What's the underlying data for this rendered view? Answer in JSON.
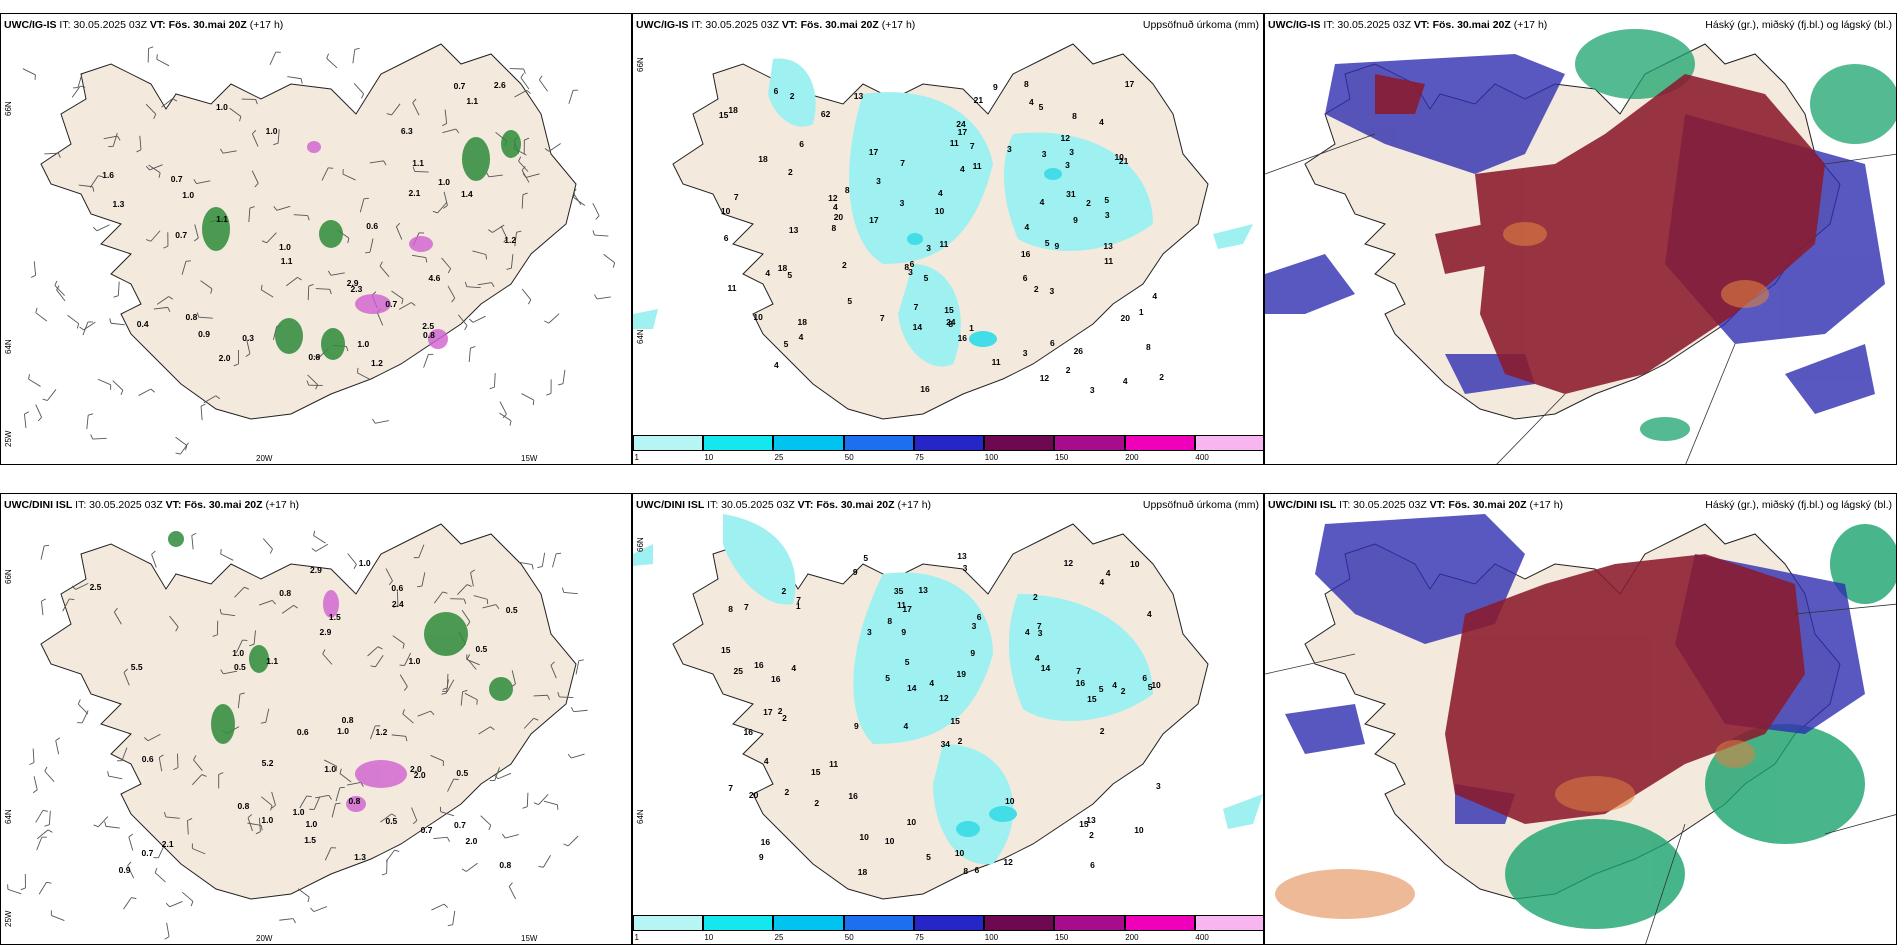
{
  "rows": [
    {
      "id": "top",
      "wind": {
        "model": "UWC/IG-IS",
        "it_label": "IT: 30.05.2025 03Z",
        "vt_label": "VT: Fös. 30.mai 20Z",
        "lead": "(+17 h)",
        "lon_labels": [
          "20W",
          "15W"
        ],
        "lat_labels": [
          "66N",
          "64N",
          "25W"
        ],
        "values": [
          "1.2",
          "1.0",
          "0.8",
          "0.7",
          "1.0",
          "1.0",
          "1.2",
          "1.1",
          "1.1",
          "0.9",
          "0.4",
          "1.6",
          "1.0",
          "2.9",
          "2.1",
          "0.7",
          "1.3",
          "1.1",
          "4.6",
          "1.4",
          "2.5",
          "2.3",
          "2.0",
          "0.8",
          "0.6",
          "1.1",
          "0.7",
          "1.0",
          "0.8",
          "1.0",
          "0.7",
          "2.6",
          "6.3",
          "0.3"
        ]
      },
      "precip": {
        "model": "UWC/IG-IS",
        "it_label": "IT: 30.05.2025 03Z",
        "vt_label": "VT: Fös. 30.mai 20Z",
        "lead": "(+17 h)",
        "title": "Uppsöfnuð úrkoma (mm)",
        "lat_labels": [
          "66N",
          "64N"
        ],
        "values": [
          "6",
          "4",
          "2",
          "1",
          "3",
          "3",
          "5",
          "4",
          "8",
          "2",
          "5",
          "16",
          "11",
          "3",
          "5",
          "4",
          "4",
          "4",
          "8",
          "7",
          "5",
          "6",
          "4",
          "4",
          "3",
          "5",
          "2",
          "3",
          "2",
          "5",
          "21",
          "9",
          "7",
          "6",
          "17",
          "4",
          "11",
          "11",
          "9",
          "12",
          "6",
          "2",
          "24",
          "16",
          "10",
          "17",
          "17",
          "8",
          "3",
          "2",
          "7",
          "12",
          "10",
          "26",
          "18",
          "20",
          "5",
          "6",
          "9",
          "24",
          "13",
          "14",
          "11",
          "11",
          "8",
          "10",
          "4",
          "7",
          "15",
          "8",
          "13",
          "13",
          "18",
          "8",
          "3",
          "4",
          "3",
          "3",
          "11",
          "18",
          "2",
          "7",
          "12",
          "16",
          "21",
          "62",
          "4",
          "8",
          "31",
          "18",
          "20",
          "3",
          "3",
          "10",
          "17",
          "15",
          "4",
          "3",
          "1",
          "6"
        ]
      },
      "cloud": {
        "model": "UWC/IG-IS",
        "it_label": "IT: 30.05.2025 03Z",
        "vt_label": "VT: Fös. 30.mai 20Z",
        "lead": "(+17 h)",
        "title": "Háský (gr.), miðský (fj.bl.) og lágský (bl.)"
      }
    },
    {
      "id": "bottom",
      "wind": {
        "model": "UWC/DINI ISL",
        "it_label": "IT: 30.05.2025 03Z",
        "vt_label": "VT: Fös. 30.mai 20Z",
        "lead": "(+17 h)",
        "lon_labels": [
          "20W",
          "15W"
        ],
        "lat_labels": [
          "66N",
          "64N",
          "25W"
        ],
        "values": [
          "0.7",
          "0.5",
          "0.8",
          "1.0",
          "0.8",
          "1.0",
          "0.7",
          "0.6",
          "0.7",
          "0.8",
          "0.8",
          "0.5",
          "1.0",
          "2.9",
          "0.5",
          "1.0",
          "2.0",
          "0.6",
          "0.6",
          "0.5",
          "2.5",
          "2.1",
          "1.5",
          "1.2",
          "2.0",
          "2.4",
          "1.1",
          "2.9",
          "0.5",
          "0.8",
          "2.0",
          "5.2",
          "1.5",
          "0.9",
          "1.0",
          "1.3",
          "1.0",
          "1.0",
          "5.5",
          "1.0"
        ]
      },
      "precip": {
        "model": "UWC/DINI ISL",
        "it_label": "IT: 30.05.2025 03Z",
        "vt_label": "VT: Fös. 30.mai 20Z",
        "lead": "(+17 h)",
        "title": "Uppsöfnuð úrkoma (mm)",
        "lat_labels": [
          "66N",
          "64N"
        ],
        "values": [
          "5",
          "2",
          "5",
          "4",
          "2",
          "2",
          "7",
          "4",
          "16",
          "3",
          "12",
          "9",
          "9",
          "9",
          "8",
          "6",
          "10",
          "12",
          "14",
          "15",
          "16",
          "17",
          "10",
          "4",
          "7",
          "16",
          "14",
          "16",
          "13",
          "20",
          "15",
          "6",
          "2",
          "5",
          "10",
          "3",
          "7",
          "10",
          "10",
          "13",
          "16",
          "18",
          "12",
          "2",
          "5",
          "3",
          "2",
          "7",
          "15",
          "15",
          "11",
          "15",
          "19",
          "4",
          "3",
          "2",
          "5",
          "4",
          "4",
          "9",
          "10",
          "2",
          "7",
          "16",
          "34",
          "25",
          "5",
          "2",
          "3",
          "4",
          "4",
          "35",
          "6",
          "4",
          "9",
          "4",
          "10",
          "1",
          "2",
          "11",
          "13",
          "10",
          "6",
          "8",
          "8",
          "17"
        ]
      },
      "cloud": {
        "model": "UWC/DINI ISL",
        "it_label": "IT: 30.05.2025 03Z",
        "vt_label": "VT: Fös. 30.mai 20Z",
        "lead": "(+17 h)",
        "title": "Háský (gr.), miðský (fj.bl.) og lágský (bl.)"
      }
    }
  ],
  "legend": {
    "ticks": [
      "1",
      "10",
      "25",
      "50",
      "75",
      "100",
      "150",
      "200",
      "400"
    ],
    "colors": [
      "#b7f4f4",
      "#12e8ee",
      "#00c3f0",
      "#1e6ff0",
      "#2626c8",
      "#6e0850",
      "#a80c8a",
      "#f000b8",
      "#f7b6f0"
    ]
  },
  "colors": {
    "land": "#f3e9dc",
    "precip_light": "#9ff0f0",
    "precip_mid": "#42dde6",
    "high_cloud": "#8b1a2c",
    "mid_cloud": "#2e2eb0",
    "low_cloud": "#1aa36e",
    "wind_green": "#2e8b3a",
    "wind_pink": "#d060d0"
  }
}
